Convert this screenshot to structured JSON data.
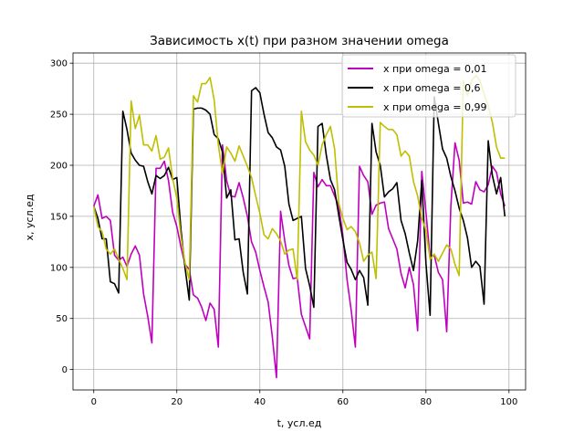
{
  "chart_data": {
    "type": "line",
    "title": "Зависимость x(t) при разном значении omega",
    "xlabel": "t, усл.ед",
    "ylabel": "x, усл.ед",
    "xlim": [
      -5,
      104
    ],
    "ylim": [
      -20,
      310
    ],
    "xticks": [
      0,
      20,
      40,
      60,
      80,
      100
    ],
    "yticks": [
      0,
      50,
      100,
      150,
      200,
      250,
      300
    ],
    "grid": true,
    "legend_position": "top-right",
    "x": [
      0,
      1,
      2,
      3,
      4,
      5,
      6,
      7,
      8,
      9,
      10,
      11,
      12,
      13,
      14,
      15,
      16,
      17,
      18,
      19,
      20,
      21,
      22,
      23,
      24,
      25,
      26,
      27,
      28,
      29,
      30,
      31,
      32,
      33,
      34,
      35,
      36,
      37,
      38,
      39,
      40,
      41,
      42,
      43,
      44,
      45,
      46,
      47,
      48,
      49,
      50,
      51,
      52,
      53,
      54,
      55,
      56,
      57,
      58,
      59,
      60,
      61,
      62,
      63,
      64,
      65,
      66,
      67,
      68,
      69,
      70,
      71,
      72,
      73,
      74,
      75,
      76,
      77,
      78,
      79,
      80,
      81,
      82,
      83,
      84,
      85,
      86,
      87,
      88,
      89,
      90,
      91,
      92,
      93,
      94,
      95,
      96,
      97,
      98,
      99
    ],
    "series": [
      {
        "name": "x при omega = 0,01",
        "color": "#bf00bf",
        "values": [
          160,
          171,
          148,
          150,
          146,
          112,
          107,
          110,
          101,
          113,
          121,
          112,
          74,
          52,
          26,
          197,
          197,
          204,
          185,
          154,
          140,
          120,
          103,
          98,
          73,
          70,
          61,
          48,
          65,
          59,
          22,
          220,
          185,
          170,
          169,
          183,
          168,
          150,
          125,
          115,
          97,
          81,
          66,
          32,
          -8,
          155,
          126,
          102,
          89,
          90,
          54,
          42,
          30,
          193,
          179,
          186,
          180,
          180,
          170,
          160,
          131,
          88,
          58,
          22,
          199,
          190,
          184,
          152,
          161,
          163,
          164,
          138,
          128,
          118,
          94,
          80,
          100,
          83,
          38,
          194,
          154,
          110,
          112,
          95,
          88,
          37,
          160,
          222,
          205,
          163,
          164,
          162,
          184,
          176,
          174,
          181,
          199,
          193,
          172,
          160
        ]
      },
      {
        "name": "x при omega = 0,6",
        "color": "#000000",
        "values": [
          160,
          148,
          128,
          128,
          86,
          84,
          75,
          253,
          235,
          212,
          205,
          200,
          199,
          184,
          172,
          190,
          187,
          190,
          198,
          186,
          188,
          137,
          99,
          68,
          255,
          256,
          256,
          254,
          250,
          230,
          226,
          213,
          168,
          176,
          127,
          128,
          95,
          74,
          273,
          276,
          271,
          250,
          232,
          227,
          218,
          215,
          199,
          162,
          146,
          148,
          150,
          99,
          82,
          61,
          238,
          241,
          210,
          186,
          176,
          151,
          127,
          105,
          98,
          88,
          97,
          90,
          63,
          241,
          213,
          200,
          169,
          174,
          177,
          183,
          146,
          133,
          114,
          97,
          126,
          185,
          104,
          53,
          267,
          241,
          216,
          207,
          189,
          175,
          158,
          146,
          129,
          100,
          106,
          101,
          64,
          224,
          190,
          172,
          188,
          150
        ]
      },
      {
        "name": "x при omega = 0,99",
        "color": "#bfbf00",
        "values": [
          160,
          140,
          135,
          118,
          113,
          118,
          108,
          99,
          88,
          263,
          236,
          249,
          220,
          220,
          214,
          229,
          206,
          208,
          217,
          187,
          168,
          130,
          104,
          88,
          268,
          262,
          280,
          280,
          286,
          264,
          220,
          192,
          218,
          212,
          204,
          219,
          209,
          199,
          188,
          170,
          153,
          132,
          128,
          138,
          133,
          126,
          113,
          117,
          118,
          88,
          253,
          223,
          215,
          210,
          200,
          220,
          230,
          238,
          216,
          163,
          148,
          137,
          140,
          135,
          124,
          106,
          112,
          115,
          89,
          242,
          238,
          235,
          235,
          230,
          209,
          214,
          209,
          184,
          170,
          148,
          136,
          108,
          113,
          106,
          114,
          122,
          118,
          103,
          92,
          283,
          268,
          283,
          288,
          283,
          270,
          258,
          242,
          218,
          207,
          207
        ]
      }
    ]
  }
}
